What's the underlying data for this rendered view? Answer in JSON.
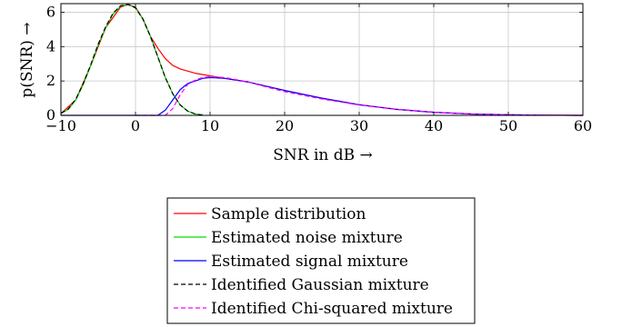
{
  "chart_data": {
    "type": "line",
    "title": "",
    "xlabel": "SNR in dB  →",
    "ylabel": "p(SNR)  →",
    "xlim": [
      -10,
      60
    ],
    "ylim": [
      0,
      6.5
    ],
    "xticks": [
      -10,
      0,
      10,
      20,
      30,
      40,
      50,
      60
    ],
    "xtick_labels": [
      "−10",
      "0",
      "10",
      "20",
      "30",
      "40",
      "50",
      "60"
    ],
    "yticks": [
      0,
      2,
      4,
      6
    ],
    "ytick_labels": [
      "0",
      "2",
      "4",
      "6"
    ],
    "grid": true,
    "legend_position": "below",
    "series": [
      {
        "name": "Sample distribution",
        "color": "#ff0000",
        "dash": "solid",
        "x": [
          -10,
          -8,
          -6,
          -4,
          -2,
          -1,
          0,
          1,
          2,
          3,
          4,
          5,
          6,
          8,
          10,
          12,
          15,
          18,
          20,
          25,
          30,
          35,
          40,
          45,
          50,
          55,
          60
        ],
        "y": [
          0.1,
          0.9,
          2.9,
          5.1,
          6.3,
          6.45,
          6.3,
          5.6,
          4.6,
          3.9,
          3.3,
          2.9,
          2.7,
          2.45,
          2.3,
          2.15,
          1.95,
          1.65,
          1.45,
          1.0,
          0.62,
          0.35,
          0.18,
          0.08,
          0.03,
          0.01,
          0.0
        ]
      },
      {
        "name": "Estimated noise mixture",
        "color": "#00dd00",
        "dash": "solid",
        "x": [
          -10,
          -9,
          -8,
          -7,
          -6,
          -5,
          -4,
          -3,
          -2,
          -1,
          0,
          1,
          2,
          3,
          4,
          5,
          6,
          7,
          8,
          9
        ],
        "y": [
          0.1,
          0.35,
          0.9,
          1.8,
          2.9,
          4.1,
          5.1,
          5.9,
          6.35,
          6.45,
          6.25,
          5.6,
          4.6,
          3.4,
          2.2,
          1.25,
          0.6,
          0.25,
          0.08,
          0.02
        ]
      },
      {
        "name": "Estimated signal mixture",
        "color": "#0000ff",
        "dash": "solid",
        "x": [
          -10,
          0,
          3,
          4,
          5,
          6,
          7,
          8,
          9,
          10,
          12,
          15,
          18,
          20,
          25,
          30,
          35,
          40,
          45,
          50,
          55,
          60
        ],
        "y": [
          0.0,
          0.0,
          0.0,
          0.3,
          0.9,
          1.5,
          1.85,
          2.0,
          2.15,
          2.2,
          2.15,
          1.95,
          1.65,
          1.45,
          1.0,
          0.62,
          0.35,
          0.18,
          0.08,
          0.03,
          0.01,
          0.0
        ]
      },
      {
        "name": "Identified Gaussian mixture",
        "color": "#000000",
        "dash": "dashed",
        "x": [
          -10,
          -9,
          -8,
          -7,
          -6,
          -5,
          -4,
          -3,
          -2,
          -1,
          0,
          1,
          2,
          3,
          4,
          5,
          6,
          7,
          8,
          9
        ],
        "y": [
          0.12,
          0.38,
          0.95,
          1.85,
          2.95,
          4.15,
          5.15,
          5.95,
          6.38,
          6.45,
          6.25,
          5.6,
          4.6,
          3.4,
          2.2,
          1.25,
          0.6,
          0.25,
          0.08,
          0.02
        ]
      },
      {
        "name": "Identified Chi-squared mixture",
        "color": "#ff00ff",
        "dash": "dashed",
        "x": [
          0,
          4,
          5,
          6,
          7,
          8,
          9,
          10,
          12,
          15,
          18,
          20,
          25,
          30,
          35,
          40,
          45,
          50,
          55,
          60
        ],
        "y": [
          0.0,
          0.0,
          0.4,
          1.2,
          1.8,
          2.05,
          2.2,
          2.25,
          2.2,
          1.95,
          1.6,
          1.38,
          0.95,
          0.6,
          0.35,
          0.18,
          0.09,
          0.03,
          0.01,
          0.0
        ]
      }
    ]
  }
}
